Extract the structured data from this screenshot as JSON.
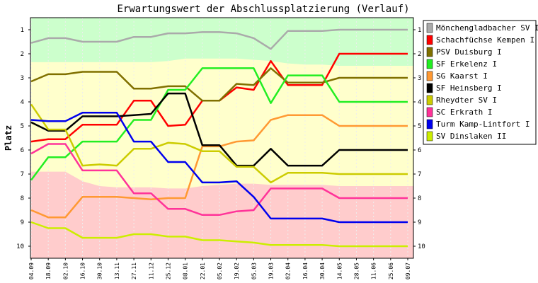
{
  "chart_data": {
    "type": "line",
    "title": "Erwartungswert der Abschlussplatzierung (Verlauf)",
    "ylabel": "Platz",
    "ylim": [
      0.5,
      10.5
    ],
    "y_inverted": true,
    "y_ticks": [
      1,
      2,
      3,
      4,
      5,
      6,
      7,
      8,
      9,
      10
    ],
    "x": [
      "04.09",
      "18.09",
      "02.10",
      "16.10",
      "30.10",
      "13.11",
      "27.11",
      "11.12",
      "25.12",
      "08.01",
      "22.01",
      "05.02",
      "19.02",
      "05.03",
      "19.03",
      "02.04",
      "16.04",
      "30.04",
      "14.05",
      "28.05",
      "11.06",
      "25.06",
      "09.07"
    ],
    "legend_position": "right",
    "zones": [
      {
        "color": "#ccffcc",
        "upper": [
          2.35,
          2.35,
          2.35,
          2.35,
          2.35,
          2.35,
          2.35,
          2.35,
          2.3,
          2.2,
          2.2,
          2.2,
          2.2,
          2.25,
          2.3,
          2.4,
          2.45,
          2.45,
          2.5,
          2.5,
          2.5,
          2.5,
          2.5
        ]
      },
      {
        "color": "#ffffcc",
        "upper": [
          6.9,
          6.9,
          6.9,
          7.3,
          7.5,
          7.55,
          7.55,
          7.55,
          7.6,
          7.6,
          7.5,
          7.45,
          7.4,
          7.4,
          7.45,
          7.45,
          7.45,
          7.45,
          7.5,
          7.5,
          7.5,
          7.5,
          7.5
        ]
      },
      {
        "color": "#ffcccc",
        "upper": [
          10.5,
          10.5,
          10.5,
          10.5,
          10.5,
          10.5,
          10.5,
          10.5,
          10.5,
          10.5,
          10.5,
          10.5,
          10.5,
          10.5,
          10.5,
          10.5,
          10.5,
          10.5,
          10.5,
          10.5,
          10.5,
          10.5,
          10.5
        ]
      }
    ],
    "series": [
      {
        "name": "Mönchengladbacher SV I",
        "color": "#aaaaaa",
        "values": [
          1.55,
          1.35,
          1.35,
          1.5,
          1.5,
          1.5,
          1.3,
          1.3,
          1.15,
          1.15,
          1.1,
          1.1,
          1.15,
          1.35,
          1.8,
          1.05,
          1.05,
          1.05,
          1.0,
          1.0,
          1.0,
          1.0,
          1.0
        ]
      },
      {
        "name": "Schachfüchse Kempen I",
        "color": "#ff0000",
        "values": [
          5.65,
          5.55,
          5.55,
          4.95,
          4.95,
          4.95,
          3.95,
          3.95,
          5.0,
          4.95,
          3.95,
          3.95,
          3.4,
          3.5,
          2.3,
          3.3,
          3.3,
          3.3,
          2.0,
          2.0,
          2.0,
          2.0,
          2.0
        ]
      },
      {
        "name": "PSV Duisburg I",
        "color": "#807000",
        "values": [
          3.15,
          2.85,
          2.85,
          2.75,
          2.75,
          2.75,
          3.45,
          3.45,
          3.35,
          3.35,
          3.95,
          3.95,
          3.25,
          3.3,
          2.6,
          3.2,
          3.2,
          3.2,
          3.0,
          3.0,
          3.0,
          3.0,
          3.0
        ]
      },
      {
        "name": "SF Erkelenz I",
        "color": "#22ee22",
        "values": [
          7.25,
          6.3,
          6.3,
          5.65,
          5.65,
          5.65,
          4.75,
          4.75,
          3.5,
          3.5,
          2.6,
          2.6,
          2.6,
          2.6,
          4.05,
          2.9,
          2.9,
          2.9,
          4.0,
          4.0,
          4.0,
          4.0,
          4.0
        ]
      },
      {
        "name": "SG Kaarst I",
        "color": "#ff9933",
        "values": [
          8.5,
          8.8,
          8.8,
          7.95,
          7.95,
          7.95,
          8.0,
          8.05,
          8.0,
          8.0,
          5.85,
          5.85,
          5.65,
          5.6,
          4.75,
          4.55,
          4.55,
          4.55,
          5.0,
          5.0,
          5.0,
          5.0,
          5.0
        ]
      },
      {
        "name": "SF Heinsberg I",
        "color": "#000000",
        "values": [
          4.85,
          5.2,
          5.2,
          4.6,
          4.6,
          4.6,
          4.55,
          4.5,
          3.65,
          3.65,
          5.8,
          5.8,
          6.65,
          6.65,
          5.95,
          6.65,
          6.65,
          6.65,
          6.0,
          6.0,
          6.0,
          6.0,
          6.0
        ]
      },
      {
        "name": "Rheydter SV I",
        "color": "#cccc00",
        "values": [
          4.1,
          5.15,
          5.15,
          6.65,
          6.6,
          6.65,
          5.95,
          5.95,
          5.7,
          5.75,
          6.05,
          6.05,
          6.7,
          6.7,
          7.35,
          6.95,
          6.95,
          6.95,
          7.0,
          7.0,
          7.0,
          7.0,
          7.0
        ]
      },
      {
        "name": "SC Erkrath I",
        "color": "#ff3399",
        "values": [
          6.15,
          5.75,
          5.75,
          6.85,
          6.85,
          6.85,
          7.8,
          7.8,
          8.45,
          8.45,
          8.7,
          8.7,
          8.55,
          8.5,
          7.6,
          7.6,
          7.6,
          7.6,
          8.0,
          8.0,
          8.0,
          8.0,
          8.0
        ]
      },
      {
        "name": "Turm Kamp-Lintfort I",
        "color": "#0000ee",
        "values": [
          4.75,
          4.8,
          4.8,
          4.45,
          4.45,
          4.45,
          5.65,
          5.65,
          6.5,
          6.5,
          7.35,
          7.35,
          7.3,
          7.95,
          8.85,
          8.85,
          8.85,
          8.85,
          9.0,
          9.0,
          9.0,
          9.0,
          9.0
        ]
      },
      {
        "name": "SV Dinslaken II",
        "color": "#ccee00",
        "values": [
          9.0,
          9.25,
          9.25,
          9.65,
          9.65,
          9.65,
          9.5,
          9.5,
          9.6,
          9.6,
          9.75,
          9.75,
          9.8,
          9.85,
          9.95,
          9.95,
          9.95,
          9.95,
          10.0,
          10.0,
          10.0,
          10.0,
          10.0
        ]
      }
    ]
  }
}
